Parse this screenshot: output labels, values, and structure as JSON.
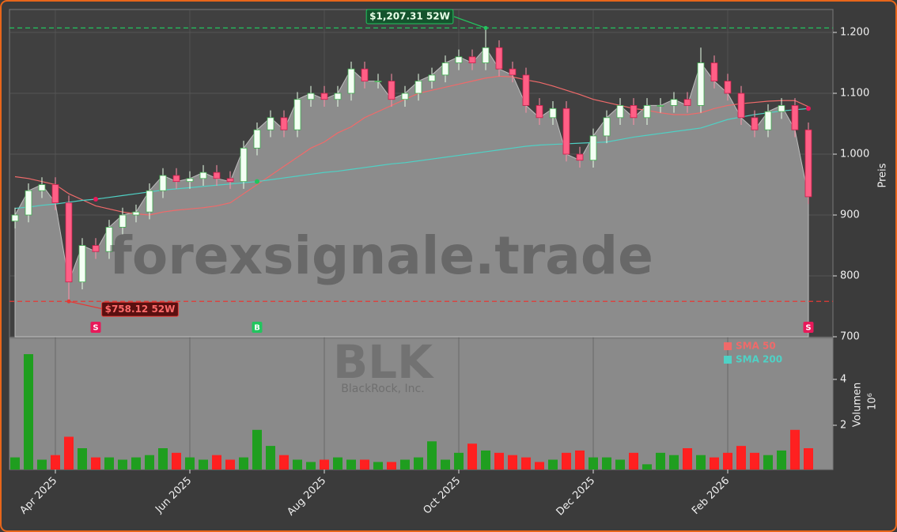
{
  "chart_data": {
    "type": "candlestick",
    "ticker": "BLK",
    "company": "BlackRock, Inc.",
    "watermark": "forexsignale.trade",
    "y_label": "Preis",
    "categories": [
      null,
      null,
      null,
      "Apr 2025",
      null,
      null,
      null,
      null,
      null,
      null,
      null,
      null,
      null,
      "Jun 2025",
      null,
      null,
      null,
      null,
      null,
      null,
      null,
      null,
      null,
      "Aug 2025",
      null,
      null,
      null,
      null,
      null,
      null,
      null,
      null,
      null,
      "Oct 2025",
      null,
      null,
      null,
      null,
      null,
      null,
      null,
      null,
      null,
      "Dec 2025",
      null,
      null,
      null,
      null,
      null,
      null,
      null,
      null,
      null,
      "Feb 2026",
      null,
      null,
      null,
      null,
      null,
      null
    ],
    "open": [
      890,
      900,
      940,
      950,
      920,
      790,
      850,
      840,
      880,
      900,
      905,
      940,
      965,
      955,
      960,
      970,
      960,
      955,
      1010,
      1040,
      1060,
      1040,
      1090,
      1100,
      1090,
      1100,
      1140,
      1120,
      1120,
      1090,
      1100,
      1120,
      1130,
      1150,
      1160,
      1150,
      1175,
      1140,
      1130,
      1080,
      1060,
      1075,
      1000,
      990,
      1030,
      1060,
      1080,
      1060,
      1080,
      1080,
      1090,
      1080,
      1150,
      1120,
      1100,
      1060,
      1040,
      1070,
      1080,
      1040
    ],
    "high": [
      912,
      952,
      962,
      962,
      932,
      862,
      862,
      892,
      912,
      917,
      952,
      977,
      977,
      972,
      982,
      982,
      972,
      1022,
      1052,
      1072,
      1072,
      1102,
      1112,
      1112,
      1112,
      1152,
      1152,
      1132,
      1132,
      1112,
      1132,
      1142,
      1162,
      1172,
      1172,
      1207.31,
      1187,
      1152,
      1142,
      1092,
      1087,
      1087,
      1012,
      1042,
      1072,
      1092,
      1092,
      1092,
      1092,
      1102,
      1102,
      1175,
      1162,
      1132,
      1112,
      1072,
      1082,
      1092,
      1092,
      1052
    ],
    "low": [
      878,
      888,
      928,
      908,
      758.12,
      778,
      828,
      828,
      868,
      888,
      893,
      928,
      943,
      943,
      948,
      948,
      943,
      943,
      998,
      1028,
      1028,
      1028,
      1078,
      1078,
      1078,
      1088,
      1108,
      1108,
      1078,
      1078,
      1088,
      1108,
      1118,
      1138,
      1138,
      1138,
      1128,
      1118,
      1068,
      1048,
      1048,
      988,
      978,
      978,
      1018,
      1048,
      1048,
      1048,
      1068,
      1068,
      1068,
      1068,
      1108,
      1088,
      1048,
      1028,
      1028,
      1058,
      1028,
      918
    ],
    "close": [
      900,
      940,
      950,
      920,
      790,
      850,
      840,
      880,
      900,
      905,
      940,
      965,
      955,
      960,
      970,
      960,
      955,
      1010,
      1040,
      1060,
      1040,
      1090,
      1100,
      1090,
      1100,
      1140,
      1120,
      1120,
      1090,
      1100,
      1120,
      1130,
      1150,
      1160,
      1150,
      1175,
      1140,
      1130,
      1080,
      1060,
      1075,
      1000,
      990,
      1030,
      1060,
      1080,
      1060,
      1080,
      1080,
      1090,
      1080,
      1150,
      1120,
      1100,
      1060,
      1040,
      1070,
      1080,
      1040,
      930
    ],
    "up_color": "#1f9e1f",
    "down_color": "#ff2020",
    "series": [
      {
        "name": "SMA 50",
        "color": "#f06a6a",
        "values": [
          963,
          960,
          955,
          950,
          935,
          925,
          915,
          910,
          905,
          902,
          900,
          905,
          908,
          910,
          912,
          915,
          920,
          935,
          950,
          965,
          980,
          995,
          1010,
          1020,
          1035,
          1045,
          1060,
          1070,
          1080,
          1090,
          1100,
          1105,
          1110,
          1115,
          1120,
          1125,
          1128,
          1127,
          1122,
          1118,
          1112,
          1105,
          1098,
          1090,
          1085,
          1080,
          1075,
          1072,
          1068,
          1065,
          1065,
          1068,
          1075,
          1080,
          1083,
          1085,
          1087,
          1088,
          1088,
          1078
        ]
      },
      {
        "name": "SMA 200",
        "color": "#4fd1c5",
        "values": [
          911,
          913,
          916,
          918,
          921,
          924,
          926,
          929,
          932,
          935,
          938,
          941,
          943,
          945,
          947,
          949,
          951,
          953,
          955,
          958,
          961,
          964,
          967,
          970,
          972,
          975,
          978,
          981,
          984,
          986,
          989,
          992,
          995,
          998,
          1001,
          1004,
          1007,
          1010,
          1013,
          1015,
          1016,
          1017,
          1018,
          1019,
          1020,
          1024,
          1028,
          1031,
          1034,
          1037,
          1040,
          1043,
          1050,
          1057,
          1061,
          1065,
          1068,
          1071,
          1073,
          1075
        ]
      }
    ],
    "signals": [
      null,
      null,
      null,
      null,
      null,
      null,
      "S",
      null,
      null,
      null,
      null,
      null,
      null,
      null,
      null,
      null,
      null,
      null,
      "B",
      null,
      null,
      null,
      null,
      null,
      null,
      null,
      null,
      null,
      null,
      null,
      null,
      null,
      null,
      null,
      null,
      null,
      null,
      null,
      null,
      null,
      null,
      null,
      null,
      null,
      null,
      null,
      null,
      null,
      null,
      null,
      null,
      null,
      null,
      null,
      null,
      null,
      null,
      null,
      null,
      "S"
    ],
    "signal_colors": {
      "S": "#e8195a",
      "B": "#22c55e"
    },
    "annotations": [
      {
        "label": "$1,207.31 52W",
        "value": 1207.31,
        "color": "#22c55e"
      },
      {
        "label": "$758.12 52W",
        "value": 758.12,
        "color": "#e53935"
      }
    ],
    "ylim": [
      700,
      1237.7
    ],
    "yticks": [
      700,
      800,
      900,
      {
        "value": 1000,
        "label": "1.000"
      },
      {
        "value": 1100,
        "label": "1.100"
      },
      {
        "value": 1200,
        "label": "1.200"
      }
    ],
    "grid": true,
    "volume": {
      "label": "Volumen",
      "multiplier": "10⁶",
      "ylim": [
        0.07,
        5.79
      ],
      "yticks": [
        2,
        4
      ],
      "values": [
        0.6,
        5.1,
        0.5,
        0.7,
        1.5,
        1.0,
        0.6,
        0.6,
        0.5,
        0.6,
        0.7,
        1.0,
        0.8,
        0.6,
        0.5,
        0.7,
        0.5,
        0.6,
        1.8,
        1.1,
        0.7,
        0.5,
        0.4,
        0.5,
        0.6,
        0.5,
        0.5,
        0.4,
        0.4,
        0.5,
        0.6,
        1.3,
        0.5,
        0.8,
        1.2,
        0.9,
        0.8,
        0.7,
        0.6,
        0.4,
        0.5,
        0.8,
        0.9,
        0.6,
        0.6,
        0.5,
        0.8,
        0.3,
        0.8,
        0.7,
        1.0,
        0.7,
        0.6,
        0.8,
        1.1,
        0.8,
        0.7,
        0.9,
        1.8,
        1.0
      ]
    }
  }
}
